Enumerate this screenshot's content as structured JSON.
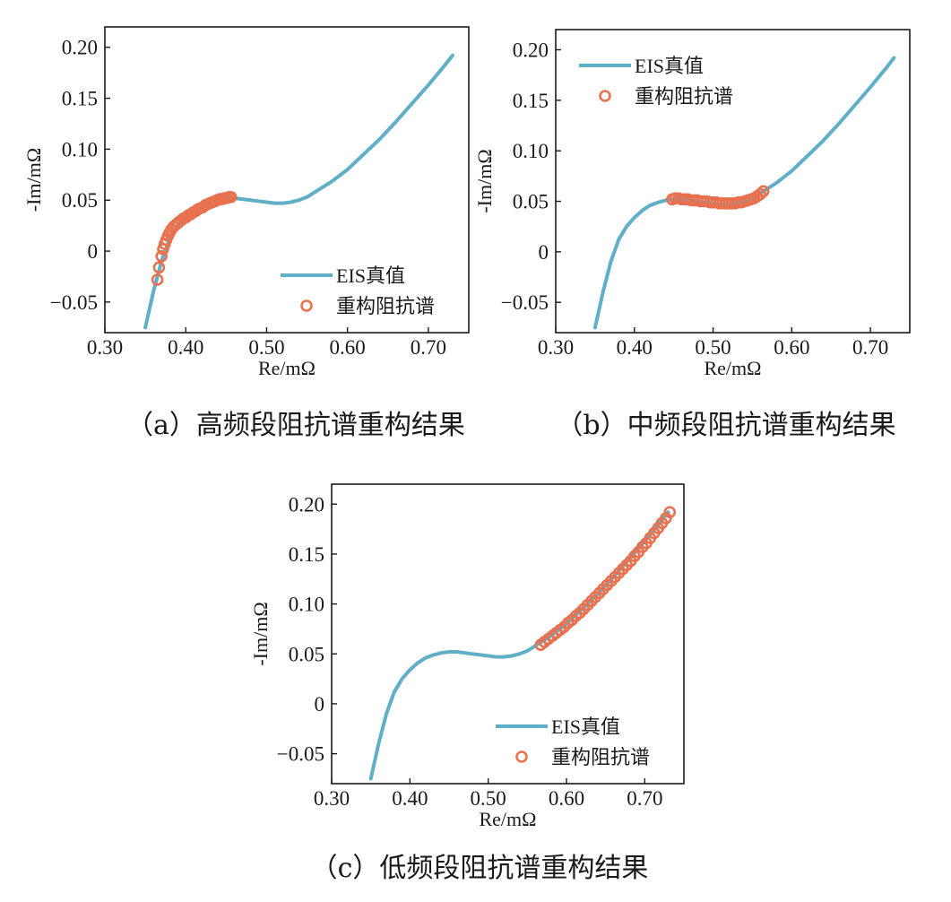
{
  "colors": {
    "truth": "#5fafc8",
    "recon": "#e8714f",
    "axis": "#1a1a1a"
  },
  "chart_data": [
    {
      "type": "line",
      "caption": "（a）高频段阻抗谱重构结果",
      "xlabel": "Re/mΩ",
      "ylabel": "-Im/mΩ",
      "xlim": [
        0.3,
        0.75
      ],
      "ylim": [
        -0.08,
        0.22
      ],
      "xticks": [
        {
          "v": 0.3,
          "label": "0.30"
        },
        {
          "v": 0.4,
          "label": "0.40"
        },
        {
          "v": 0.5,
          "label": "0.50"
        },
        {
          "v": 0.6,
          "label": "0.60"
        },
        {
          "v": 0.7,
          "label": "0.70"
        }
      ],
      "yticks": [
        {
          "v": -0.05,
          "label": "−0.05"
        },
        {
          "v": 0,
          "label": "0"
        },
        {
          "v": 0.05,
          "label": "0.05"
        },
        {
          "v": 0.1,
          "label": "0.10"
        },
        {
          "v": 0.15,
          "label": "0.15"
        },
        {
          "v": 0.2,
          "label": "0.20"
        }
      ],
      "legend_position": "bottom-right",
      "series": [
        {
          "name": "EIS真值",
          "kind": "line",
          "x": [
            0.35,
            0.36,
            0.37,
            0.38,
            0.39,
            0.4,
            0.41,
            0.42,
            0.43,
            0.44,
            0.45,
            0.46,
            0.47,
            0.48,
            0.49,
            0.5,
            0.51,
            0.52,
            0.53,
            0.54,
            0.55,
            0.56,
            0.58,
            0.6,
            0.62,
            0.64,
            0.66,
            0.68,
            0.7,
            0.72,
            0.73
          ],
          "y": [
            -0.075,
            -0.04,
            -0.01,
            0.012,
            0.025,
            0.034,
            0.041,
            0.046,
            0.049,
            0.051,
            0.052,
            0.052,
            0.051,
            0.05,
            0.049,
            0.048,
            0.047,
            0.047,
            0.048,
            0.05,
            0.053,
            0.058,
            0.068,
            0.08,
            0.095,
            0.11,
            0.127,
            0.145,
            0.163,
            0.182,
            0.192
          ]
        },
        {
          "name": "重构阻抗谱",
          "kind": "scatter",
          "x": [
            0.365,
            0.367,
            0.37,
            0.372,
            0.374,
            0.376,
            0.378,
            0.38,
            0.382,
            0.385,
            0.388,
            0.391,
            0.394,
            0.397,
            0.4,
            0.403,
            0.406,
            0.409,
            0.412,
            0.415,
            0.418,
            0.421,
            0.424,
            0.427,
            0.43,
            0.433,
            0.436,
            0.439,
            0.442,
            0.445,
            0.448,
            0.451,
            0.454,
            0.456
          ],
          "y": [
            -0.028,
            -0.016,
            -0.005,
            0.002,
            0.007,
            0.011,
            0.015,
            0.018,
            0.021,
            0.024,
            0.026,
            0.028,
            0.03,
            0.032,
            0.033,
            0.035,
            0.036,
            0.038,
            0.039,
            0.041,
            0.042,
            0.043,
            0.045,
            0.046,
            0.047,
            0.048,
            0.049,
            0.05,
            0.051,
            0.051,
            0.052,
            0.052,
            0.053,
            0.053
          ]
        }
      ]
    },
    {
      "type": "line",
      "caption": "（b）中频段阻抗谱重构结果",
      "xlabel": "Re/mΩ",
      "ylabel": "-Im/mΩ",
      "xlim": [
        0.3,
        0.75
      ],
      "ylim": [
        -0.08,
        0.22
      ],
      "xticks": [
        {
          "v": 0.3,
          "label": "0.30"
        },
        {
          "v": 0.4,
          "label": "0.40"
        },
        {
          "v": 0.5,
          "label": "0.50"
        },
        {
          "v": 0.6,
          "label": "0.60"
        },
        {
          "v": 0.7,
          "label": "0.70"
        }
      ],
      "yticks": [
        {
          "v": -0.05,
          "label": "−0.05"
        },
        {
          "v": 0,
          "label": "0"
        },
        {
          "v": 0.05,
          "label": "0.05"
        },
        {
          "v": 0.1,
          "label": "0.10"
        },
        {
          "v": 0.15,
          "label": "0.15"
        },
        {
          "v": 0.2,
          "label": "0.20"
        }
      ],
      "legend_position": "top-left",
      "series": [
        {
          "name": "EIS真值",
          "kind": "line",
          "x": [
            0.35,
            0.36,
            0.37,
            0.38,
            0.39,
            0.4,
            0.41,
            0.42,
            0.43,
            0.44,
            0.45,
            0.46,
            0.47,
            0.48,
            0.49,
            0.5,
            0.51,
            0.52,
            0.53,
            0.54,
            0.55,
            0.56,
            0.58,
            0.6,
            0.62,
            0.64,
            0.66,
            0.68,
            0.7,
            0.72,
            0.73
          ],
          "y": [
            -0.075,
            -0.04,
            -0.01,
            0.012,
            0.025,
            0.034,
            0.041,
            0.046,
            0.049,
            0.051,
            0.052,
            0.052,
            0.051,
            0.05,
            0.049,
            0.048,
            0.047,
            0.047,
            0.048,
            0.05,
            0.053,
            0.058,
            0.068,
            0.08,
            0.095,
            0.11,
            0.127,
            0.145,
            0.163,
            0.182,
            0.192
          ]
        },
        {
          "name": "重构阻抗谱",
          "kind": "scatter",
          "x": [
            0.448,
            0.452,
            0.456,
            0.46,
            0.464,
            0.468,
            0.472,
            0.476,
            0.48,
            0.484,
            0.488,
            0.492,
            0.496,
            0.5,
            0.504,
            0.508,
            0.512,
            0.516,
            0.52,
            0.524,
            0.528,
            0.532,
            0.536,
            0.54,
            0.544,
            0.548,
            0.552,
            0.556,
            0.56,
            0.564
          ],
          "y": [
            0.052,
            0.053,
            0.053,
            0.052,
            0.052,
            0.052,
            0.051,
            0.051,
            0.051,
            0.05,
            0.05,
            0.05,
            0.049,
            0.049,
            0.049,
            0.048,
            0.048,
            0.048,
            0.048,
            0.048,
            0.048,
            0.049,
            0.049,
            0.05,
            0.051,
            0.052,
            0.053,
            0.055,
            0.057,
            0.06
          ]
        }
      ]
    },
    {
      "type": "line",
      "caption": "（c）低频段阻抗谱重构结果",
      "xlabel": "Re/mΩ",
      "ylabel": "-Im/mΩ",
      "xlim": [
        0.3,
        0.75
      ],
      "ylim": [
        -0.08,
        0.22
      ],
      "xticks": [
        {
          "v": 0.3,
          "label": "0.30"
        },
        {
          "v": 0.4,
          "label": "0.40"
        },
        {
          "v": 0.5,
          "label": "0.50"
        },
        {
          "v": 0.6,
          "label": "0.60"
        },
        {
          "v": 0.7,
          "label": "0.70"
        }
      ],
      "yticks": [
        {
          "v": -0.05,
          "label": "−0.05"
        },
        {
          "v": 0,
          "label": "0"
        },
        {
          "v": 0.05,
          "label": "0.05"
        },
        {
          "v": 0.1,
          "label": "0.10"
        },
        {
          "v": 0.15,
          "label": "0.15"
        },
        {
          "v": 0.2,
          "label": "0.20"
        }
      ],
      "legend_position": "bottom-right",
      "series": [
        {
          "name": "EIS真值",
          "kind": "line",
          "x": [
            0.35,
            0.36,
            0.37,
            0.38,
            0.39,
            0.4,
            0.41,
            0.42,
            0.43,
            0.44,
            0.45,
            0.46,
            0.47,
            0.48,
            0.49,
            0.5,
            0.51,
            0.52,
            0.53,
            0.54,
            0.55,
            0.56,
            0.58,
            0.6,
            0.62,
            0.64,
            0.66,
            0.68,
            0.7,
            0.72,
            0.73
          ],
          "y": [
            -0.075,
            -0.04,
            -0.01,
            0.012,
            0.025,
            0.034,
            0.041,
            0.046,
            0.049,
            0.051,
            0.052,
            0.052,
            0.051,
            0.05,
            0.049,
            0.048,
            0.047,
            0.047,
            0.048,
            0.05,
            0.053,
            0.058,
            0.068,
            0.08,
            0.095,
            0.11,
            0.127,
            0.145,
            0.163,
            0.182,
            0.192
          ]
        },
        {
          "name": "重构阻抗谱",
          "kind": "scatter",
          "x": [
            0.567,
            0.572,
            0.577,
            0.582,
            0.587,
            0.592,
            0.597,
            0.602,
            0.607,
            0.612,
            0.617,
            0.622,
            0.627,
            0.632,
            0.637,
            0.642,
            0.647,
            0.652,
            0.657,
            0.662,
            0.667,
            0.672,
            0.677,
            0.682,
            0.687,
            0.692,
            0.697,
            0.702,
            0.707,
            0.712,
            0.717,
            0.722,
            0.727,
            0.732
          ],
          "y": [
            0.059,
            0.062,
            0.065,
            0.068,
            0.071,
            0.074,
            0.077,
            0.081,
            0.084,
            0.088,
            0.091,
            0.095,
            0.099,
            0.103,
            0.107,
            0.111,
            0.115,
            0.119,
            0.123,
            0.127,
            0.131,
            0.135,
            0.139,
            0.143,
            0.148,
            0.152,
            0.157,
            0.161,
            0.166,
            0.171,
            0.176,
            0.181,
            0.186,
            0.192
          ]
        }
      ]
    }
  ]
}
